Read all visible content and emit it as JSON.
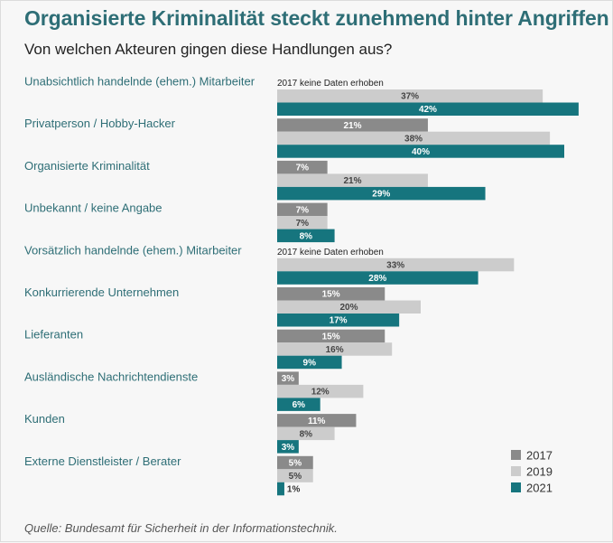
{
  "title": "Organisierte Kriminalität steckt zunehmend hinter Angriffen",
  "subtitle": "Von welchen Akteuren gingen diese Handlungen aus?",
  "source": "Quelle: Bundesamt für Sicherheit in der Informationstechnik.",
  "colors": {
    "2017": "#8a8a8a",
    "2019": "#cccccc",
    "2021": "#16757e",
    "label_teal": "#2e6e76"
  },
  "chart_data": {
    "type": "bar",
    "orientation": "horizontal",
    "title": "Organisierte Kriminalität steckt zunehmend hinter Angriffen",
    "subtitle": "Von welchen Akteuren gingen diese Handlungen aus?",
    "xlabel": "",
    "ylabel": "",
    "xlim": [
      0,
      50
    ],
    "grid": false,
    "legend": "bottom-right",
    "unit": "%",
    "categories": [
      "Unabsichtlich handelnde (ehem.) Mitarbeiter",
      "Privatperson / Hobby-Hacker",
      "Organisierte Kriminalität",
      "Unbekannt / keine Angabe",
      "Vorsätzlich handelnde (ehem.) Mitarbeiter",
      "Konkurrierende Unternehmen",
      "Lieferanten",
      "Ausländische Nachrichtendienste",
      "Kunden",
      "Externe Dienstleister / Berater"
    ],
    "series": [
      {
        "name": "2017",
        "values": [
          null,
          21,
          7,
          7,
          null,
          15,
          15,
          3,
          11,
          5
        ]
      },
      {
        "name": "2019",
        "values": [
          37,
          38,
          21,
          7,
          33,
          20,
          16,
          12,
          8,
          5
        ]
      },
      {
        "name": "2021",
        "values": [
          42,
          40,
          29,
          8,
          28,
          17,
          9,
          6,
          3,
          1
        ]
      }
    ],
    "labels": {
      "2017": [
        null,
        "21%",
        "7%",
        "7%",
        null,
        "15%",
        "15%",
        "3%",
        "11%",
        "5%"
      ],
      "2019": [
        "37%",
        "38%",
        "21%",
        "7%",
        "33%",
        "20%",
        "16%",
        "12%",
        "8%",
        "5%"
      ],
      "2021": [
        "42%",
        "40%",
        "29%",
        "8%",
        "28%",
        "17%",
        "9%",
        "6%",
        "3%",
        "1%"
      ]
    },
    "missing_note": "2017 keine Daten erhoben"
  }
}
